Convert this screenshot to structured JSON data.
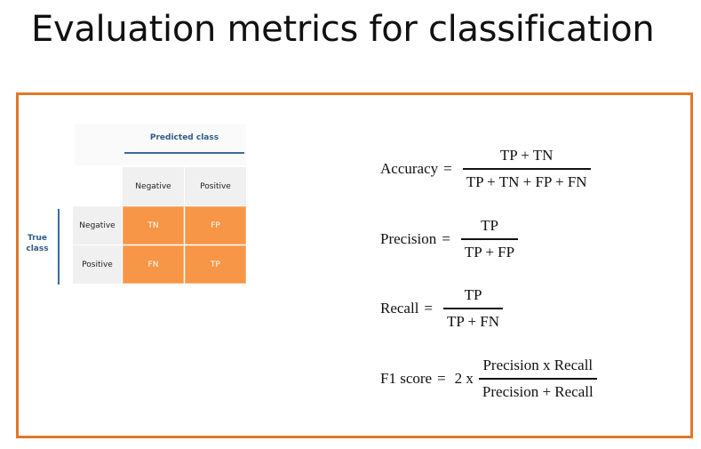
{
  "title": "Evaluation metrics for classification",
  "matrix": {
    "predicted_label": "Predicted class",
    "true_label_line1": "True",
    "true_label_line2": "class",
    "col_negative": "Negative",
    "col_positive": "Positive",
    "row_negative": "Negative",
    "row_positive": "Positive",
    "tn": "TN",
    "fp": "FP",
    "fn": "FN",
    "tp": "TP"
  },
  "formulas": {
    "accuracy": {
      "label": "Accuracy",
      "num": "TP + TN",
      "den": "TP + TN + FP + FN"
    },
    "precision": {
      "label": "Precision",
      "num": "TP",
      "den": "TP + FP"
    },
    "recall": {
      "label": "Recall",
      "num": "TP",
      "den": "TP + FN"
    },
    "f1": {
      "label": "F1 score",
      "prefix": "2 x",
      "num": "Precision x Recall",
      "den": "Precision + Recall"
    },
    "equals": "="
  },
  "colors": {
    "frame": "#e07828",
    "cell": "#f79646",
    "label": "#2f5b88"
  }
}
